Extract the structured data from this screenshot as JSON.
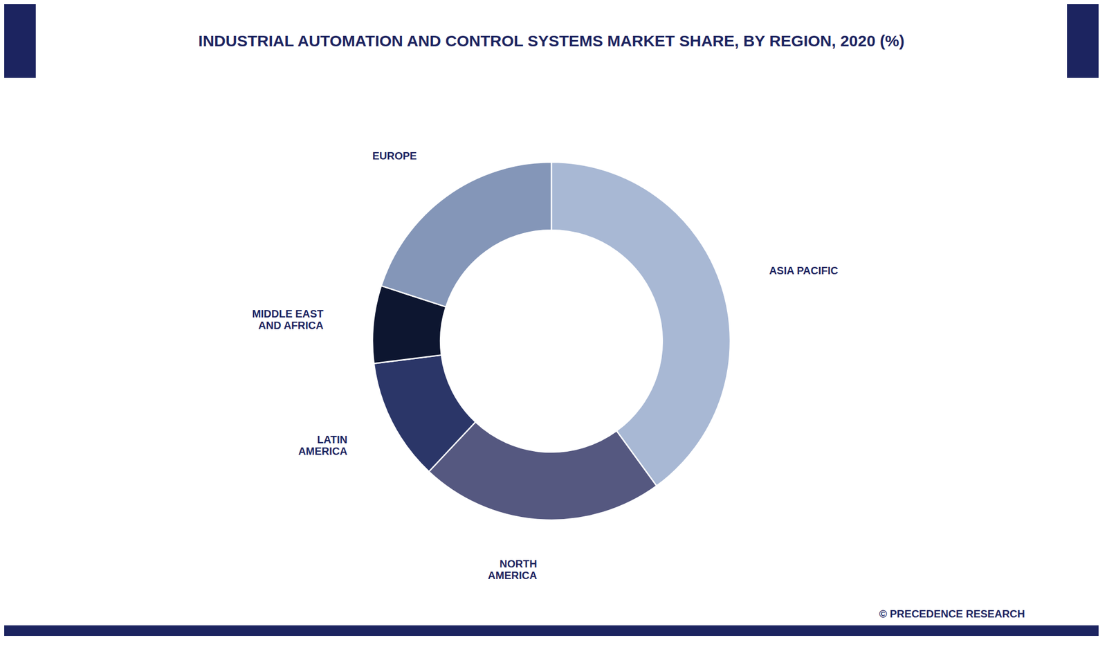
{
  "chart_data": {
    "type": "pie",
    "title": "INDUSTRIAL AUTOMATION AND CONTROL SYSTEMS MARKET SHARE, BY REGION, 2020 (%)",
    "categories": [
      "ASIA PACIFIC",
      "NORTH\nAMERICA",
      "LATIN\nAMERICA",
      "MIDDLE EAST\nAND AFRICA",
      "EUROPE"
    ],
    "values": [
      40,
      22,
      11,
      7,
      20
    ],
    "colors": [
      "#a8b8d4",
      "#555880",
      "#2b3668",
      "#0d1630",
      "#8496b8"
    ],
    "annotations": [
      "© PRECEDENCE RESEARCH"
    ]
  }
}
